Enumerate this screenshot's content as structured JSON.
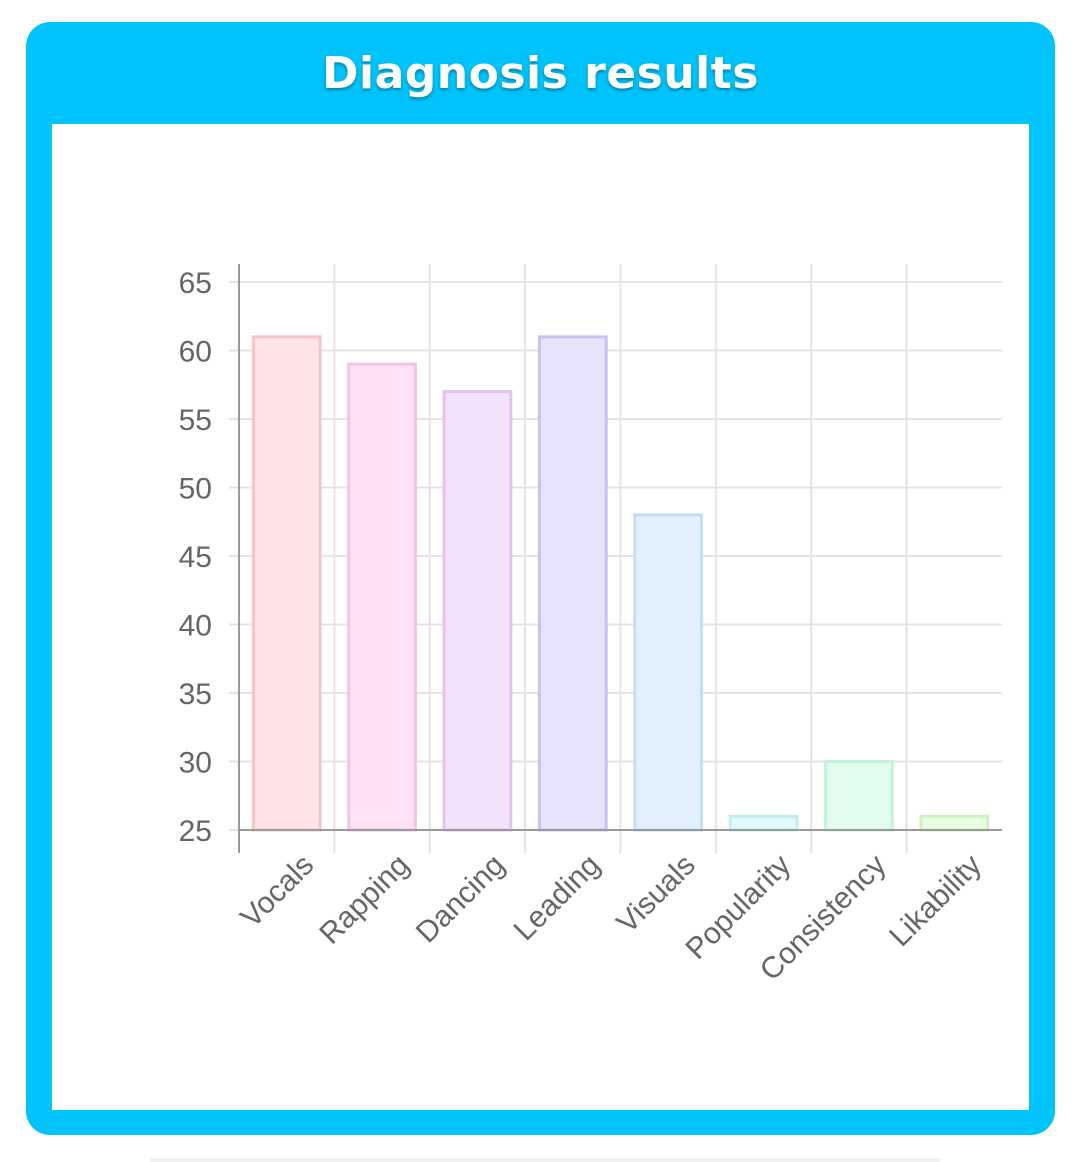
{
  "card": {
    "title": "Diagnosis results"
  },
  "colors": {
    "header": "#00c3fb",
    "grid": "#e4e4e4",
    "axis": "#9a9a9a"
  },
  "chart_data": {
    "type": "bar",
    "title": "",
    "xlabel": "",
    "ylabel": "",
    "categories": [
      "Vocals",
      "Rapping",
      "Dancing",
      "Leading",
      "Visuals",
      "Popularity",
      "Consistency",
      "Likability"
    ],
    "values": [
      61,
      59,
      57,
      61,
      48,
      26,
      30,
      26
    ],
    "ylim": [
      25,
      65
    ],
    "yticks": [
      25,
      30,
      35,
      40,
      45,
      50,
      55,
      60,
      65
    ],
    "grid": true,
    "legend": "none",
    "bar_fills": [
      "#ffe3e6",
      "#ffe2f6",
      "#f3e2fc",
      "#e6e3fd",
      "#e2f0fd",
      "#e1fbfd",
      "#e2fcef",
      "#e8fde2"
    ],
    "bar_strokes": [
      "#f6c4c9",
      "#f3c2e6",
      "#e2c2f1",
      "#c7c2f1",
      "#c3dff5",
      "#c2eef2",
      "#c2f2d8",
      "#cff2c2"
    ]
  }
}
